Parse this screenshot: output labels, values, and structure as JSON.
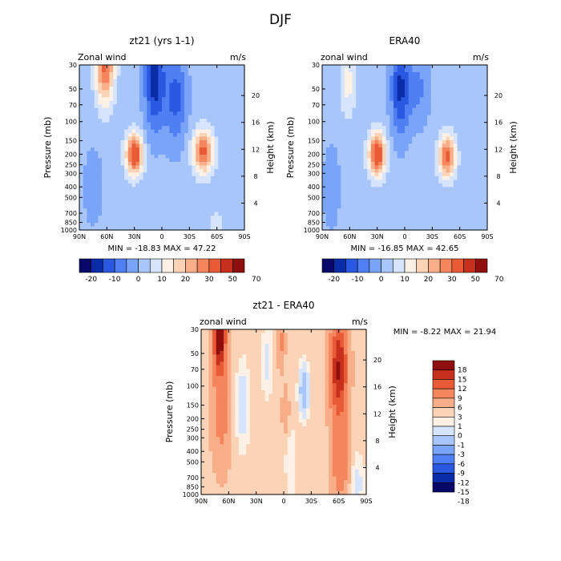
{
  "figure_title": "DJF",
  "colors": {
    "full_palette": [
      "#08086b",
      "#0a2ca8",
      "#2a58e0",
      "#4f7ff2",
      "#7aa4f7",
      "#a9c6fb",
      "#d6e5fd",
      "#fdf0e4",
      "#fbd4b8",
      "#f8ae88",
      "#f4855c",
      "#e95a36",
      "#c6301c",
      "#8e0f0d"
    ],
    "diff_palette": [
      "#08086b",
      "#0a2ca8",
      "#2a58e0",
      "#4f7ff2",
      "#7aa4f7",
      "#a9c6fb",
      "#d6e5fd",
      "#fdf0e4",
      "#fbd4b8",
      "#f8ae88",
      "#f4855c",
      "#e95a36",
      "#c6301c",
      "#8e0f0d"
    ]
  },
  "chart_data": [
    {
      "type": "heatmap",
      "title": "zt21 (yrs 1-1)",
      "subtitle_left": "Zonal wind",
      "subtitle_right": "m/s",
      "xlabel": "",
      "ylabel": "Pressure (mb)",
      "ylabel_right": "Height (km)",
      "x_ticks": [
        "90N",
        "60N",
        "30N",
        "0",
        "30S",
        "60S",
        "90S"
      ],
      "y_ticks": [
        "30",
        "50",
        "70",
        "100",
        "150",
        "200",
        "250",
        "300",
        "400",
        "500",
        "700",
        "850",
        "1000"
      ],
      "y2_ticks": [
        "20",
        "16",
        "12",
        "8",
        "4"
      ],
      "min_max": "MIN = -18.83   MAX = 47.22",
      "legend": {
        "position": "below",
        "labels": [
          "-20",
          "-10",
          "0",
          "10",
          "20",
          "30",
          "50",
          "70"
        ]
      }
    },
    {
      "type": "heatmap",
      "title": "ERA40",
      "subtitle_left": "zonal wind",
      "subtitle_right": "m/s",
      "xlabel": "",
      "ylabel": "Pressure (mb)",
      "ylabel_right": "Height (km)",
      "x_ticks": [
        "90N",
        "60N",
        "30N",
        "0",
        "30S",
        "60S",
        "90S"
      ],
      "y_ticks": [
        "30",
        "50",
        "70",
        "100",
        "150",
        "200",
        "250",
        "300",
        "400",
        "500",
        "700",
        "850",
        "1000"
      ],
      "y2_ticks": [
        "20",
        "16",
        "12",
        "8",
        "4"
      ],
      "min_max": "MIN = -16.85   MAX = 42.65",
      "legend": {
        "position": "below",
        "labels": [
          "-20",
          "-10",
          "0",
          "10",
          "20",
          "30",
          "50",
          "70"
        ]
      }
    },
    {
      "type": "heatmap",
      "title": "zt21 - ERA40",
      "subtitle_left": "zonal wind",
      "subtitle_right": "m/s",
      "xlabel": "",
      "ylabel": "Pressure (mb)",
      "ylabel_right": "Height (km)",
      "x_ticks": [
        "90N",
        "60N",
        "30N",
        "0",
        "30S",
        "60S",
        "90S"
      ],
      "y_ticks": [
        "30",
        "50",
        "70",
        "100",
        "150",
        "200",
        "250",
        "300",
        "400",
        "500",
        "700",
        "850",
        "1000"
      ],
      "y2_ticks": [
        "20",
        "16",
        "12",
        "8",
        "4"
      ],
      "min_max": "MIN =   -8.22   MAX =   21.94",
      "legend": {
        "position": "right",
        "labels": [
          "18",
          "15",
          "12",
          "9",
          "6",
          "3",
          "1",
          "0",
          "-1",
          "-3",
          "-6",
          "-9",
          "-12",
          "-15",
          "-18"
        ]
      }
    }
  ]
}
